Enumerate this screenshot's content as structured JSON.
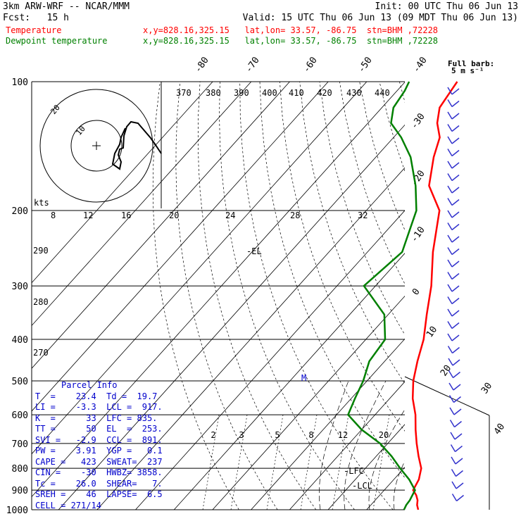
{
  "header": {
    "model": "3km ARW-WRF -- NCAR/MMM",
    "init": "Init: 00 UTC Thu 06 Jun 13",
    "fcst": "Fcst:   15 h",
    "valid": "Valid: 15 UTC Thu 06 Jun 13 (09 MDT Thu 06 Jun 13)",
    "temp_label": "Temperature",
    "temp_loc": "x,y=828.16,325.15   lat,lon= 33.57, -86.75  stn=BHM ,72228",
    "dew_label": "Dewpoint temperature",
    "dew_loc": "x,y=828.16,325.15   lat,lon= 33.57, -86.75  stn=BHM ,72228",
    "full_barb": "Full barb:",
    "full_barb_units": "5 m s⁻¹"
  },
  "colors": {
    "temperature": "#ff0000",
    "dewpoint": "#008000",
    "wind": "#0000ff",
    "text": "#000000"
  },
  "pressure_levels": [
    "100",
    "200",
    "300",
    "400",
    "500",
    "600",
    "700",
    "800",
    "900",
    "1000"
  ],
  "isotherm_top_labels": [
    "-80",
    "-70",
    "-60",
    "-50",
    "-40"
  ],
  "isotherm_right_labels": [
    "-30",
    "-20",
    "-10",
    "0",
    "10",
    "20",
    "30",
    "40"
  ],
  "theta_top_labels": [
    "370",
    "380",
    "390",
    "400",
    "410",
    "420",
    "430",
    "440"
  ],
  "theta_left_labels": [
    "290",
    "280",
    "270"
  ],
  "hodograph_ring_labels": [
    "20",
    "10"
  ],
  "hodo_speed_labels": [
    "kts",
    "8",
    "12",
    "16",
    "20",
    "24",
    "28",
    "32"
  ],
  "mixing_ratio_labels": [
    "2",
    "3",
    "5",
    "8",
    "12",
    "20"
  ],
  "levels": {
    "el": "-EL",
    "lfc": "-LFC",
    "lcl": "-LCL",
    "m": "M"
  },
  "parcel": {
    "title": "Parcel Info",
    "rows": [
      "T  =    23.4  Td =  19.7",
      "LI =    -3.3  LCL =  917.",
      "K  =      33  LFC = 835.",
      "TT =      50  EL  =  253.",
      "SVI =   -2.9  CCL =  891.",
      "PW =    3.91  YGP =   0.1",
      "CAPE =   423  SWEAT=  237",
      "CIN =    -30  HWBZ= 3858.",
      "Tc =    26.0  SHEAR=   7.",
      "SREH =    46  LAPSE=  6.5",
      "CELL = 271/14"
    ]
  },
  "chart_data": {
    "type": "line",
    "title": "",
    "xlabel": "",
    "ylabel": "",
    "ylim": [
      1000,
      100
    ],
    "y_scale": "log-pressure (hPa)",
    "series": [
      {
        "name": "Temperature",
        "color": "#ff0000",
        "x": [
          23.4,
          22.0,
          21.0,
          19.5,
          17.5,
          16.5,
          14.5,
          11.0,
          7.5,
          4.0,
          0.5,
          -4.0,
          -8.0,
          -11.5,
          -15.0,
          -20.0,
          -25.5,
          -33.0,
          -41.0,
          -49.5,
          -55.0,
          -58.0,
          -62.0,
          -65.0,
          -66.0,
          -66.5
        ],
        "y": [
          1000,
          975,
          950,
          925,
          900,
          850,
          800,
          750,
          700,
          650,
          600,
          550,
          500,
          450,
          400,
          350,
          300,
          250,
          200,
          175,
          150,
          135,
          125,
          115,
          105,
          100
        ]
      },
      {
        "name": "Dewpoint temperature",
        "color": "#008000",
        "x": [
          19.7,
          19.2,
          19.0,
          18.5,
          18.0,
          14.0,
          9.0,
          4.0,
          -2.0,
          -10.0,
          -17.0,
          -19.0,
          -21.0,
          -24.0,
          -25.0,
          -31.0,
          -43.0,
          -41.0,
          -47.0,
          -53.0,
          -61.0,
          -68.0,
          -74.0,
          -77.0,
          -78.0,
          -79.0
        ],
        "y": [
          1000,
          975,
          950,
          925,
          900,
          850,
          800,
          750,
          700,
          650,
          600,
          550,
          500,
          450,
          400,
          350,
          300,
          250,
          200,
          175,
          150,
          135,
          125,
          115,
          105,
          100
        ]
      }
    ]
  }
}
